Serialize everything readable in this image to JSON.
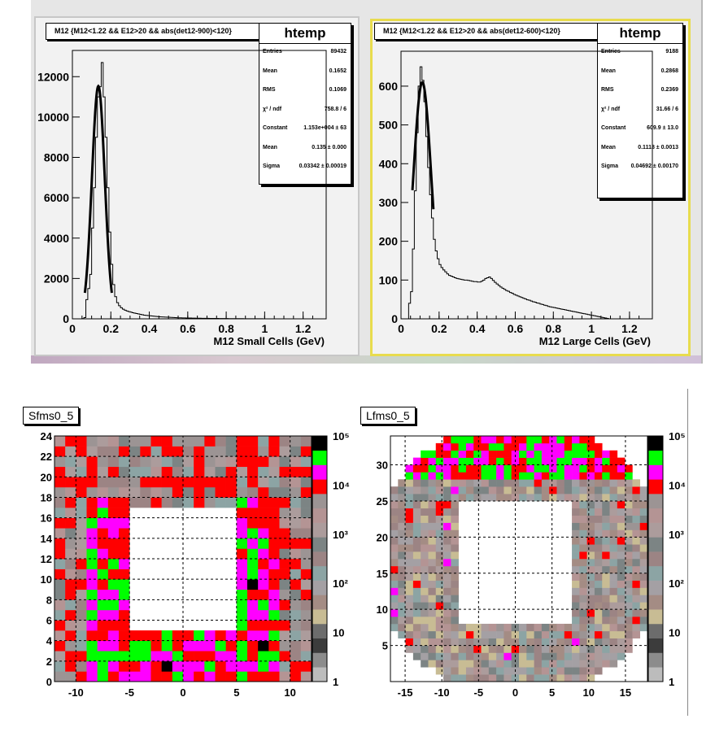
{
  "colors": {
    "palette_low_to_high": [
      "#bcbcbc",
      "#8c8c8c",
      "#3c3c3c",
      "#6c6c6c",
      "#c8bc94",
      "#a48c84",
      "#a4a0a4",
      "#8ca4a4",
      "#9c8484",
      "#7c8484",
      "#ac9c9c",
      "#b49494",
      "#9c9494",
      "#ff0000",
      "#ff00ff",
      "#00ff00",
      "#000000"
    ],
    "top_pad_left_border": "#c7c7c7",
    "top_pad_right_border": "#e8dc4e"
  },
  "top": [
    {
      "title": "M12 {M12<1.22 && E12>20 && abs(det12-900)<120}",
      "stats": {
        "name": "htemp",
        "rows": [
          [
            "Entries",
            "89432"
          ],
          [
            "Mean",
            "0.1652"
          ],
          [
            "RMS",
            "0.1069"
          ],
          [
            "χ² / ndf",
            "758.8 / 6"
          ],
          [
            "Constant",
            "1.153e+004 ± 63"
          ],
          [
            "Mean",
            "0.135 ± 0.000"
          ],
          [
            "Sigma",
            "0.03342 ± 0.00019"
          ]
        ]
      }
    },
    {
      "title": "M12 {M12<1.22 && E12>20 && abs(det12-600)<120}",
      "stats": {
        "name": "htemp",
        "rows": [
          [
            "Entries",
            "9188"
          ],
          [
            "Mean",
            "0.2868"
          ],
          [
            "RMS",
            "0.2369"
          ],
          [
            "χ² / ndf",
            "31.66 / 6"
          ],
          [
            "Constant",
            "609.9 ± 13.0"
          ],
          [
            "Mean",
            "0.1118 ± 0.0013"
          ],
          [
            "Sigma",
            "0.04692 ± 0.00170"
          ]
        ]
      }
    }
  ],
  "bottom": [
    {
      "name": "Sfms0_5"
    },
    {
      "name": "Lfms0_5"
    }
  ],
  "chart_data": [
    {
      "type": "bar",
      "title": "M12 {M12<1.22 && E12>20 && abs(det12-900)<120}",
      "xlabel": "M12 Small Cells (GeV)",
      "ylabel": "",
      "xlim": [
        0,
        1.32
      ],
      "ylim": [
        0,
        13300
      ],
      "xticks": [
        "0",
        "0.2",
        "0.4",
        "0.6",
        "0.8",
        "1",
        "1.2"
      ],
      "yticks": [
        "0",
        "2000",
        "4000",
        "6000",
        "8000",
        "10000",
        "12000"
      ],
      "bin_width": 0.01,
      "x_start": 0.04,
      "values": [
        0,
        10,
        60,
        950,
        1500,
        2200,
        4500,
        6500,
        9000,
        11000,
        11500,
        12700,
        11000,
        9000,
        6500,
        4300,
        2700,
        1700,
        1100,
        800,
        650,
        550,
        480,
        430,
        390,
        360,
        330,
        300,
        280,
        260,
        240,
        220,
        200,
        180,
        170,
        160,
        150,
        140,
        130,
        120,
        110,
        100,
        95,
        90,
        85,
        80,
        75,
        70,
        65,
        60,
        55,
        50,
        48,
        46,
        44,
        42,
        40,
        38,
        36,
        34,
        32,
        30,
        28,
        26,
        25,
        24,
        23,
        22,
        21,
        20,
        19,
        18,
        17,
        16,
        15,
        14,
        13,
        12,
        11,
        10,
        10,
        9,
        9,
        8,
        8,
        7,
        7,
        6,
        6,
        5,
        5,
        4,
        4,
        3,
        3,
        2,
        2,
        2,
        1,
        1
      ],
      "fit": {
        "label": "gaus",
        "constant": 11530,
        "mean": 0.135,
        "sigma": 0.03342,
        "range": [
          0.065,
          0.205
        ]
      },
      "grid": false
    },
    {
      "type": "bar",
      "title": "M12 {M12<1.22 && E12>20 && abs(det12-600)<120}",
      "xlabel": "M12 Large Cells (GeV)",
      "ylabel": "",
      "xlim": [
        0,
        1.32
      ],
      "ylim": [
        0,
        690
      ],
      "xticks": [
        "0",
        "0.2",
        "0.4",
        "0.6",
        "0.8",
        "1",
        "1.2"
      ],
      "yticks": [
        "0",
        "100",
        "200",
        "300",
        "400",
        "500",
        "600"
      ],
      "bin_width": 0.01,
      "x_start": 0.04,
      "values": [
        40,
        70,
        180,
        330,
        480,
        600,
        650,
        615,
        560,
        470,
        390,
        320,
        260,
        205,
        175,
        155,
        140,
        132,
        126,
        121,
        116,
        112,
        110,
        108,
        106,
        104,
        103,
        102,
        101,
        100,
        100,
        99,
        98,
        97,
        96,
        96,
        95,
        95,
        97,
        100,
        104,
        106,
        108,
        104,
        99,
        94,
        90,
        86,
        82,
        79,
        76,
        73,
        71,
        68,
        66,
        63,
        61,
        59,
        57,
        55,
        53,
        51,
        49,
        48,
        46,
        44,
        43,
        41,
        40,
        38,
        37,
        35,
        34,
        32,
        31,
        30,
        29,
        28,
        27,
        26,
        25,
        24,
        23,
        22,
        21,
        20,
        19,
        18,
        17,
        16,
        15,
        14,
        13,
        12,
        11,
        10,
        9,
        8,
        7,
        6,
        5,
        4,
        3,
        2,
        1
      ],
      "fit": {
        "label": "gaus",
        "constant": 609.9,
        "mean": 0.1118,
        "sigma": 0.04692,
        "range": [
          0.06,
          0.17
        ]
      },
      "grid": false
    },
    {
      "type": "heatmap",
      "title": "Sfms0_5",
      "x_range": [
        -12,
        12
      ],
      "y_range": [
        0,
        24
      ],
      "xticks": [
        "-10",
        "-5",
        "0",
        "5",
        "10"
      ],
      "yticks": [
        "0",
        "2",
        "4",
        "6",
        "8",
        "10",
        "12",
        "14",
        "16",
        "18",
        "20",
        "22",
        "24"
      ],
      "z_scale": "log",
      "z_range": [
        1,
        100000
      ],
      "z_labels": [
        "1",
        "10",
        "10²",
        "10³",
        "10⁴",
        "10⁵"
      ],
      "hole": {
        "x": [
          -5,
          5
        ],
        "y": [
          5,
          17
        ]
      },
      "grid": true
    },
    {
      "type": "heatmap",
      "title": "Lfms0_5",
      "x_range": [
        -17,
        18
      ],
      "y_range": [
        0,
        34
      ],
      "xticks": [
        "-15",
        "-10",
        "-5",
        "0",
        "5",
        "10",
        "15"
      ],
      "yticks": [
        "0",
        "5",
        "10",
        "15",
        "20",
        "25",
        "30"
      ],
      "z_scale": "log",
      "z_range": [
        1,
        100000
      ],
      "z_labels": [
        "1",
        "10",
        "10²",
        "10³",
        "10⁴",
        "10⁵"
      ],
      "hole": {
        "x": [
          -8,
          8
        ],
        "y": [
          8,
          25
        ]
      },
      "grid": true
    }
  ]
}
